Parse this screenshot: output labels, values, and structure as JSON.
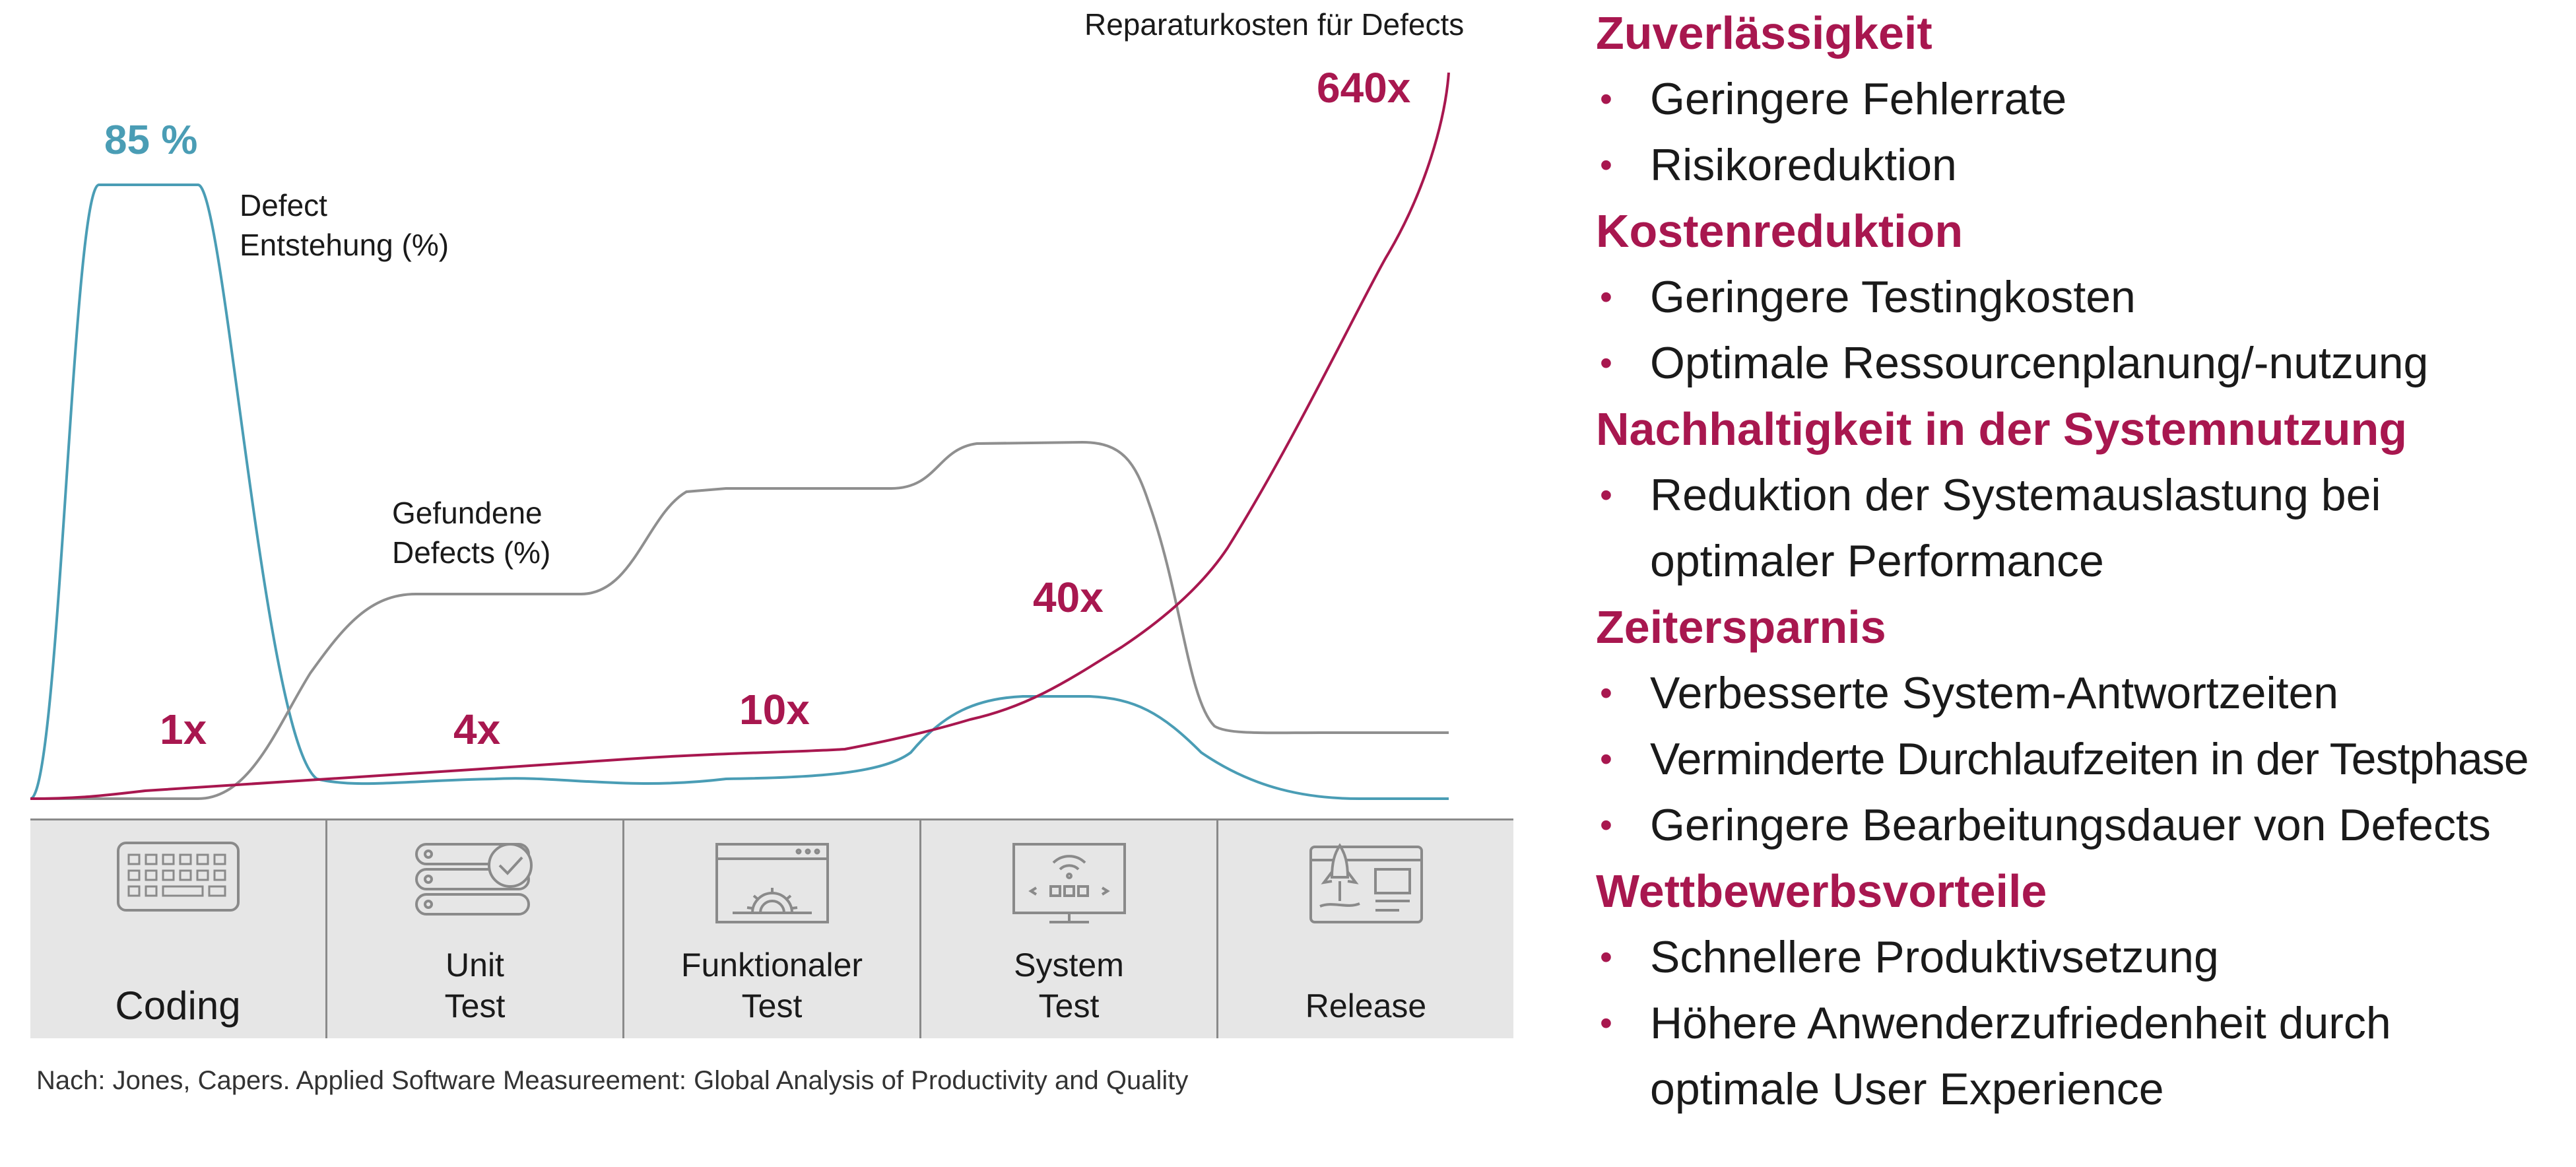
{
  "chart_data": {
    "type": "line",
    "title": "Reparaturkosten für Defects",
    "xlabel": "",
    "ylabel": "",
    "categories": [
      "Coding",
      "Unit Test",
      "Funktionaler Test",
      "System Test",
      "Release"
    ],
    "x": [
      0,
      10,
      20,
      30,
      40,
      50,
      60,
      70,
      80,
      90,
      100
    ],
    "series": [
      {
        "name": "Defect Entstehung (%)",
        "color": "#4a9db5",
        "peak_label": "85 %",
        "values": [
          0,
          85,
          85,
          2,
          2,
          3,
          2,
          14,
          14,
          3,
          0
        ]
      },
      {
        "name": "Gefundene Defects (%)",
        "color": "#8f8f8f",
        "values": [
          0,
          0,
          0,
          29,
          29,
          43,
          43,
          49,
          49,
          9,
          9
        ]
      },
      {
        "name": "Reparaturkosten für Defects",
        "color": "#a8174f",
        "values": [
          0,
          1,
          2,
          4,
          5,
          7,
          9,
          14,
          25,
          45,
          100
        ],
        "cost_labels": [
          "1x",
          "4x",
          "10x",
          "40x",
          "640x"
        ]
      }
    ]
  },
  "labels": {
    "defect_entstehung": [
      "Defect",
      "Entstehung (%)"
    ],
    "gefundene_defects": [
      "Gefundene",
      "Defects (%)"
    ]
  },
  "phases": [
    {
      "lines": [
        "Coding"
      ],
      "icon": "keyboard-icon"
    },
    {
      "lines": [
        "Unit",
        "Test"
      ],
      "icon": "server-check-icon"
    },
    {
      "lines": [
        "Funktionaler",
        "Test"
      ],
      "icon": "browser-gear-icon"
    },
    {
      "lines": [
        "System",
        "Test"
      ],
      "icon": "monitor-wifi-icon"
    },
    {
      "lines": [
        "Release"
      ],
      "icon": "rocket-dashboard-icon"
    }
  ],
  "source": "Nach: Jones, Capers. Applied Software Measureement: Global Analysis of Productivity and Quality",
  "benefits": [
    {
      "title": "Zuverlässigkeit",
      "items": [
        "Geringere Fehlerrate",
        "Risikoreduktion"
      ]
    },
    {
      "title": "Kostenreduktion",
      "items": [
        "Geringere Testingkosten",
        "Optimale Ressourcenplanung/-nutzung"
      ]
    },
    {
      "title": "Nachhaltigkeit in der Systemnutzung",
      "items": [
        "Reduktion der Systemauslastung bei optimaler Performance"
      ]
    },
    {
      "title": "Zeitersparnis",
      "items": [
        "Verbesserte System-Antwortzeiten",
        "Verminderte Durchlaufzeiten in der Testphase",
        "Geringere Bearbeitungsdauer von Defects"
      ]
    },
    {
      "title": "Wettbewerbsvorteile",
      "items": [
        "Schnellere Produktivsetzung",
        "Höhere Anwenderzufriedenheit durch optimale User Experience"
      ]
    }
  ]
}
